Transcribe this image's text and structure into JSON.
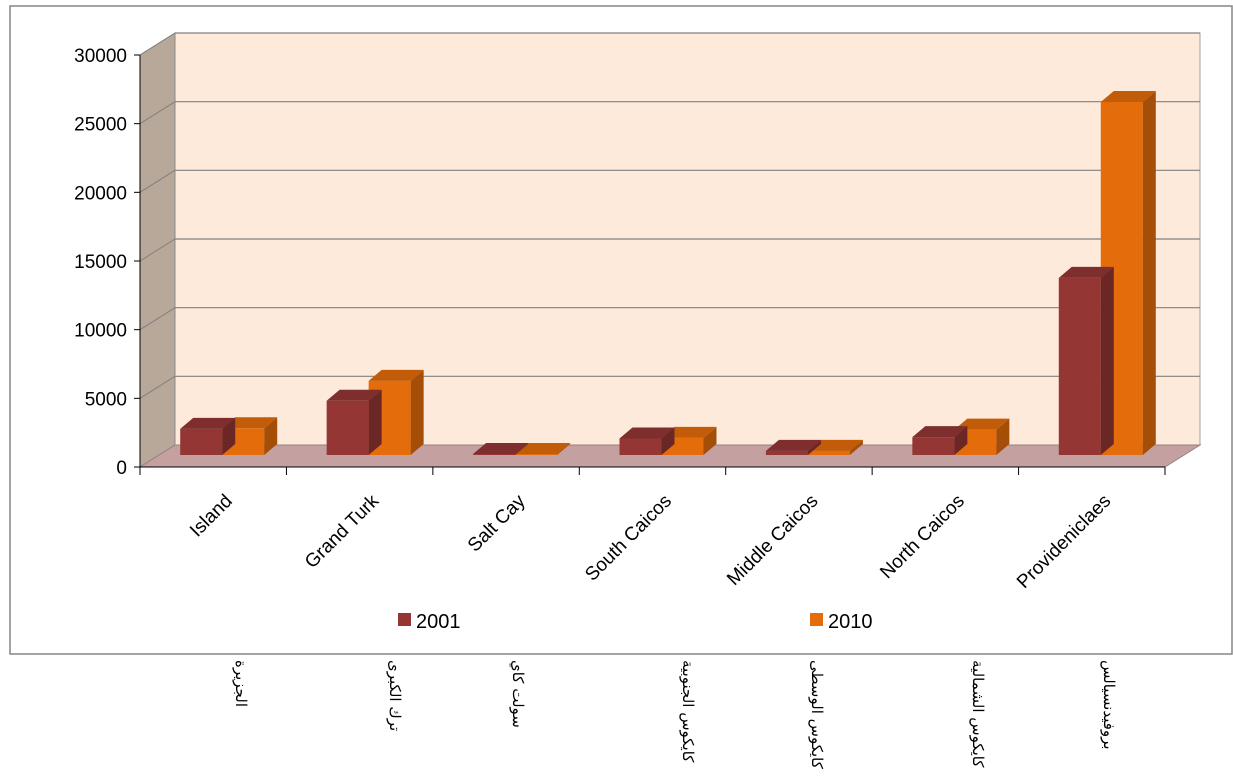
{
  "chart_data": {
    "type": "bar",
    "categories": [
      "Island",
      "Grand Turk",
      "Salt Cay",
      "South Caicos",
      "Middle Caicos",
      "North Caicos",
      "Provideniclaes"
    ],
    "arabic_labels": [
      "الجزيرة",
      "ترك الكبرى",
      "سولت كاي",
      "كايكوس الجنوبية",
      "كايكوس الوسطى",
      "كايكوس الشمالية",
      "بروفيدنسيالس"
    ],
    "series": [
      {
        "name": "2001",
        "values": [
          1900,
          3950,
          70,
          1200,
          300,
          1300,
          12900
        ],
        "color": "#943634"
      },
      {
        "name": "2010",
        "values": [
          1950,
          5400,
          70,
          1250,
          300,
          1850,
          25700
        ],
        "color": "#e46c0a"
      }
    ],
    "ylim": [
      0,
      30000
    ],
    "yticks": [
      0,
      5000,
      10000,
      15000,
      20000,
      25000,
      30000
    ],
    "grid": true,
    "legend_position": "bottom",
    "colors": {
      "back_wall": "#fdeada",
      "side_wall": "#b7a89a",
      "floor": "#c4a0a0",
      "grid": "#808080"
    }
  }
}
